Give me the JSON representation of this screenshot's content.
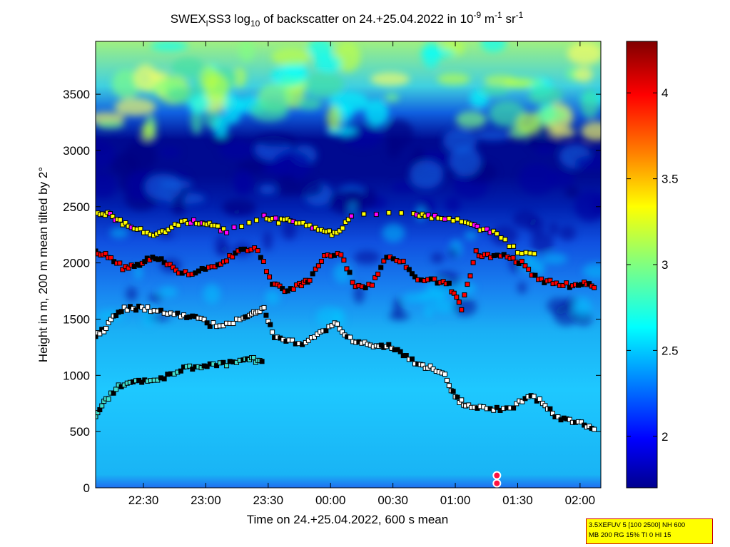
{
  "chart_data": [
    {
      "type": "heatmap",
      "title": {
        "pre": "SWEX",
        "sub1": "l",
        "mid": "SS3 log",
        "sub2": "10",
        "post": " of backscatter on 24.+25.04.2022 in 10",
        "sup1": "-9",
        "m": " m",
        "sup2": "-1",
        "sr": " sr",
        "sup3": "-1"
      },
      "xlabel": "Time on 24.+25.04.2022, 600 s mean",
      "ylabel": "Height in m, 200 m mean tilted by 2°",
      "xlim": [
        "22:07",
        "02:10"
      ],
      "ylim": [
        0,
        3970
      ],
      "x_ticks": [
        "22:30",
        "23:00",
        "23:30",
        "00:00",
        "00:30",
        "01:00",
        "01:30",
        "02:00"
      ],
      "y_ticks": [
        "0",
        "500",
        "1000",
        "1500",
        "2000",
        "2500",
        "3000",
        "3500"
      ],
      "colorbar": {
        "range": [
          1.7,
          4.3
        ],
        "ticks": [
          "2",
          "2.5",
          "3",
          "3.5",
          "4"
        ],
        "colormap": "jet",
        "colors": [
          "#00008f",
          "#0000ff",
          "#0080ff",
          "#00ffff",
          "#80ff80",
          "#ffff00",
          "#ff8000",
          "#ff0000",
          "#800000"
        ]
      },
      "field_description": {
        "below_1300m": 2.45,
        "1300_2000m": 2.2,
        "2000_2500m": 1.9,
        "2500_3200m": 1.75,
        "above_3200m": 2.9
      },
      "detections": {
        "marker_colors": {
          "lowest_layer": "#40e0d0",
          "second_layer": "#ffffff",
          "third_layer": "#ff0000",
          "fourth_layer": "#ffff00",
          "occasional": "#ff00ff"
        },
        "layers": [
          {
            "name": "layer-1",
            "points": [
              [
                "22:07",
                650
              ],
              [
                "22:12",
                780
              ],
              [
                "22:18",
                900
              ],
              [
                "22:25",
                950
              ],
              [
                "22:32",
                960
              ],
              [
                "22:40",
                980
              ],
              [
                "22:48",
                1050
              ],
              [
                "22:55",
                1080
              ],
              [
                "23:02",
                1090
              ],
              [
                "23:10",
                1100
              ],
              [
                "23:18",
                1130
              ],
              [
                "23:23",
                1140
              ],
              [
                "23:28",
                1110
              ]
            ]
          },
          {
            "name": "layer-2",
            "points": [
              [
                "22:07",
                1350
              ],
              [
                "22:12",
                1420
              ],
              [
                "22:18",
                1580
              ],
              [
                "22:25",
                1600
              ],
              [
                "22:32",
                1590
              ],
              [
                "22:40",
                1560
              ],
              [
                "22:48",
                1530
              ],
              [
                "22:55",
                1520
              ],
              [
                "23:02",
                1450
              ],
              [
                "23:10",
                1460
              ],
              [
                "23:18",
                1500
              ],
              [
                "23:23",
                1550
              ],
              [
                "23:28",
                1600
              ],
              [
                "23:33",
                1330
              ],
              [
                "23:40",
                1300
              ],
              [
                "23:48",
                1290
              ],
              [
                "23:55",
                1380
              ],
              [
                "00:02",
                1470
              ],
              [
                "00:08",
                1330
              ],
              [
                "00:15",
                1300
              ],
              [
                "00:22",
                1250
              ],
              [
                "00:28",
                1260
              ],
              [
                "00:35",
                1180
              ],
              [
                "00:42",
                1100
              ],
              [
                "00:48",
                1070
              ],
              [
                "00:55",
                1000
              ],
              [
                "01:00",
                800
              ],
              [
                "01:05",
                740
              ],
              [
                "01:12",
                720
              ],
              [
                "01:20",
                700
              ],
              [
                "01:28",
                720
              ],
              [
                "01:35",
                820
              ],
              [
                "01:42",
                760
              ],
              [
                "01:48",
                640
              ],
              [
                "01:55",
                590
              ],
              [
                "02:02",
                570
              ],
              [
                "02:08",
                500
              ]
            ]
          },
          {
            "name": "layer-3",
            "points": [
              [
                "22:07",
                2100
              ],
              [
                "22:13",
                2060
              ],
              [
                "22:20",
                1960
              ],
              [
                "22:27",
                1980
              ],
              [
                "22:33",
                2040
              ],
              [
                "22:40",
                2020
              ],
              [
                "22:47",
                1900
              ],
              [
                "22:55",
                1920
              ],
              [
                "23:03",
                1960
              ],
              [
                "23:10",
                2030
              ],
              [
                "23:17",
                2110
              ],
              [
                "23:25",
                2120
              ],
              [
                "23:32",
                1820
              ],
              [
                "23:38",
                1760
              ],
              [
                "23:45",
                1800
              ],
              [
                "23:50",
                1850
              ],
              [
                "23:57",
                2060
              ],
              [
                "00:05",
                2080
              ],
              [
                "00:12",
                1780
              ],
              [
                "00:20",
                1800
              ],
              [
                "00:27",
                2050
              ],
              [
                "00:35",
                2000
              ],
              [
                "00:42",
                1860
              ],
              [
                "00:50",
                1840
              ],
              [
                "00:57",
                1800
              ],
              [
                "01:03",
                1600
              ],
              [
                "01:10",
                2090
              ],
              [
                "01:17",
                2050
              ],
              [
                "01:25",
                2060
              ],
              [
                "01:32",
                2000
              ],
              [
                "01:40",
                1850
              ],
              [
                "01:47",
                1820
              ],
              [
                "01:55",
                1800
              ],
              [
                "02:02",
                1820
              ],
              [
                "02:08",
                1780
              ]
            ]
          },
          {
            "name": "layer-4",
            "points": [
              [
                "22:08",
                2440
              ],
              [
                "22:14",
                2430
              ],
              [
                "22:20",
                2350
              ],
              [
                "22:27",
                2310
              ],
              [
                "22:35",
                2250
              ],
              [
                "22:42",
                2300
              ],
              [
                "22:50",
                2370
              ],
              [
                "22:57",
                2360
              ],
              [
                "23:03",
                2330
              ],
              [
                "23:10",
                2280
              ],
              [
                "23:28",
                2420
              ],
              [
                "23:35",
                2370
              ],
              [
                "23:42",
                2380
              ],
              [
                "23:50",
                2320
              ],
              [
                "23:57",
                2290
              ],
              [
                "00:03",
                2250
              ],
              [
                "00:10",
                2420
              ],
              [
                "00:40",
                2440
              ],
              [
                "00:47",
                2410
              ],
              [
                "00:55",
                2390
              ],
              [
                "01:05",
                2380
              ],
              [
                "01:12",
                2300
              ],
              [
                "01:20",
                2260
              ],
              [
                "01:30",
                2100
              ],
              [
                "01:40",
                2060
              ]
            ]
          }
        ]
      },
      "ground_markers": [
        [
          "01:20",
          110
        ],
        [
          "01:20",
          40
        ]
      ]
    }
  ],
  "info_box": {
    "line1": "3.5XEFUV 5 [100 2500] NH 600",
    "line2": "MB 200 RG 15% TI 0 HI 15"
  }
}
